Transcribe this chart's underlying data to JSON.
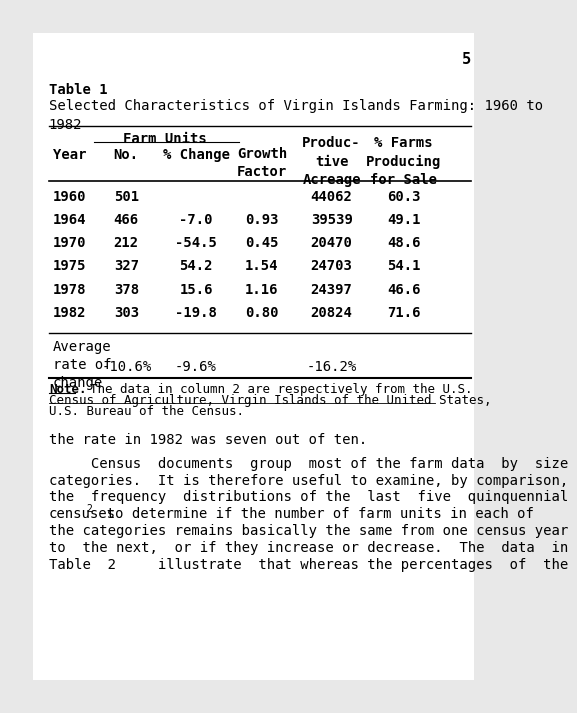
{
  "page_number": "5",
  "background_color": "#e8e8e8",
  "content_background": "#ffffff",
  "table_label": "Table 1",
  "table_title": "Selected Characteristics of Virgin Islands Farming: 1960 to\n1982",
  "farm_units_header": "Farm Units",
  "col_headers": [
    "Year",
    "No.",
    "% Change",
    "Growth\nFactor",
    "Produc-\ntive\nAcreage",
    "% Farms\nProducing\nfor Sale"
  ],
  "rows": [
    [
      "1960",
      "501",
      "",
      "",
      "44062",
      "60.3"
    ],
    [
      "1964",
      "466",
      "-7.0",
      "0.93",
      "39539",
      "49.1"
    ],
    [
      "1970",
      "212",
      "-54.5",
      "0.45",
      "20470",
      "48.6"
    ],
    [
      "1975",
      "327",
      "54.2",
      "1.54",
      "24703",
      "54.1"
    ],
    [
      "1978",
      "378",
      "15.6",
      "1.16",
      "24397",
      "46.6"
    ],
    [
      "1982",
      "303",
      "-19.8",
      "0.80",
      "20824",
      "71.6"
    ]
  ],
  "avg_label": "Average\nrate of\nchange",
  "avg_values": [
    "-10.6%",
    "-9.6%",
    "",
    "-16.2%"
  ],
  "note_bold": "Note.",
  "note_rest_line1": "  The data in column 2 are respectively from the U.S.",
  "note_line2": "Census of Agriculture, Virgin Islands of the United States,",
  "note_line3": "U.S. Bureau of the Census.",
  "body_line1": "the rate in 1982 was seven out of ten.",
  "body_para_lines": [
    "     Census  documents  group  most of the farm data  by  size",
    "categories.  It is therefore useful to examine, by comparison,",
    "the  frequency  distributions of the  last  five  quinquennial",
    "censuses  to determine if the number of farm units in each of",
    "the categories remains basically the same from one census year",
    "to  the next,  or if they increase or decrease.  The  data  in",
    "Table  2     illustrate  that whereas the percentages  of  the"
  ],
  "superscript_line_index": 3,
  "superscript_after_word": "censuses"
}
